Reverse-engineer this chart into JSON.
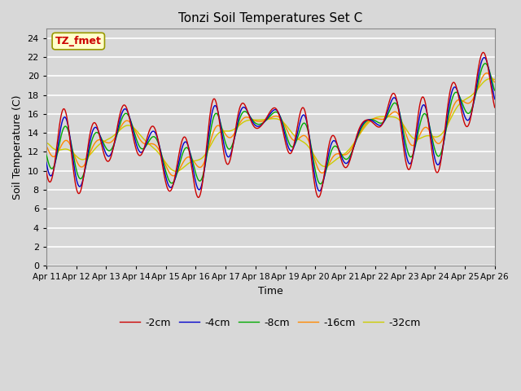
{
  "title": "Tonzi Soil Temperatures Set C",
  "xlabel": "Time",
  "ylabel": "Soil Temperature (C)",
  "ylim": [
    0,
    25
  ],
  "yticks": [
    0,
    2,
    4,
    6,
    8,
    10,
    12,
    14,
    16,
    18,
    20,
    22,
    24
  ],
  "xtick_labels": [
    "Apr 11",
    "Apr 12",
    "Apr 13",
    "Apr 14",
    "Apr 15",
    "Apr 16",
    "Apr 17",
    "Apr 18",
    "Apr 19",
    "Apr 20",
    "Apr 21",
    "Apr 22",
    "Apr 23",
    "Apr 24",
    "Apr 25",
    "Apr 26"
  ],
  "legend_labels": [
    "-2cm",
    "-4cm",
    "-8cm",
    "-16cm",
    "-32cm"
  ],
  "legend_colors": [
    "#cc0000",
    "#0000cc",
    "#00aa00",
    "#ff8800",
    "#cccc00"
  ],
  "annotation_text": "TZ_fmet",
  "annotation_color": "#cc0000",
  "annotation_bg": "#ffffcc",
  "bg_color": "#d8d8d8",
  "grid_color": "#ffffff",
  "num_points": 720,
  "time_days": 15
}
